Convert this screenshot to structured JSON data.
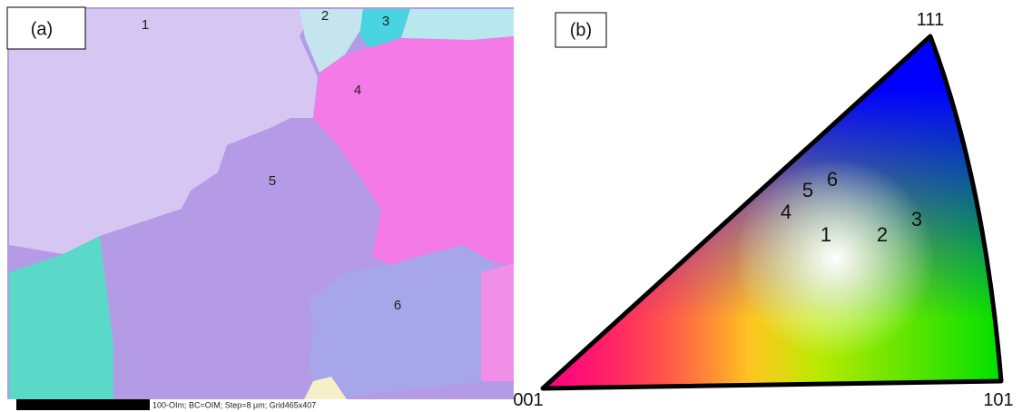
{
  "panel_a": {
    "label": "(a)",
    "grains": [
      "1",
      "2",
      "3",
      "4",
      "5",
      "6"
    ],
    "scale_bar_text": "100-OIm; BC=OIM; Step=8 µm; Grid465x407"
  },
  "panel_b": {
    "label": "(b)",
    "corners": [
      "111",
      "001",
      "101"
    ],
    "points": [
      "1",
      "2",
      "3",
      "4",
      "5",
      "6"
    ]
  }
}
